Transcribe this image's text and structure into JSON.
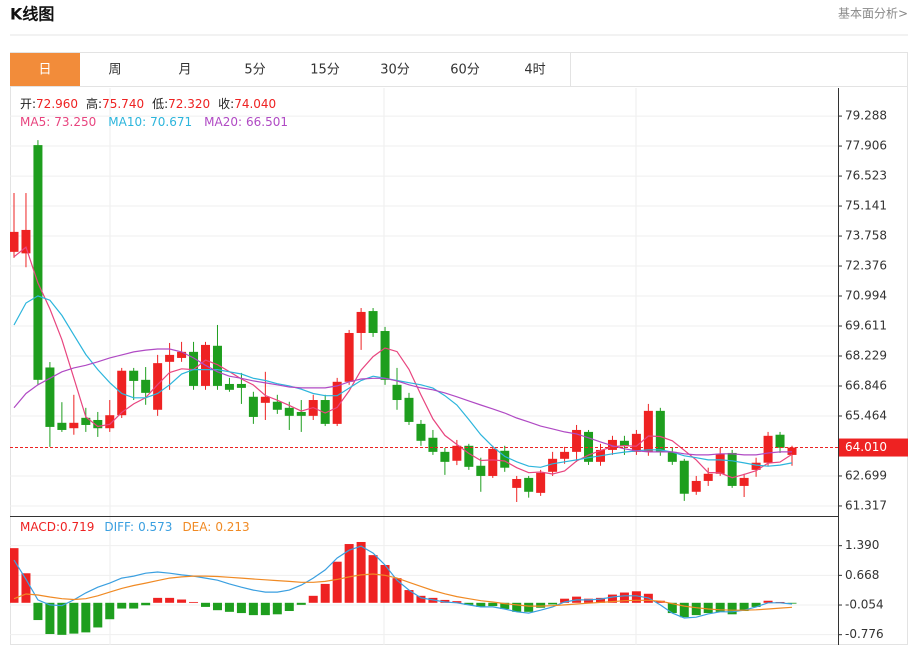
{
  "header": {
    "title": "K线图",
    "link": "基本面分析>"
  },
  "tabs": [
    "日",
    "周",
    "月",
    "5分",
    "15分",
    "30分",
    "60分",
    "4时"
  ],
  "chart_data": [
    {
      "type": "candlestick",
      "up_color": "#ee2222",
      "down_color": "#1e9e1e",
      "open": [
        73.03,
        72.96,
        77.95,
        67.7,
        65.15,
        64.9,
        65.38,
        65.28,
        64.9,
        65.5,
        67.55,
        67.13,
        65.75,
        67.96,
        68.14,
        68.42,
        66.85,
        68.7,
        66.94,
        66.94,
        66.35,
        66.07,
        66.12,
        65.84,
        65.65,
        65.47,
        66.2,
        65.1,
        67.04,
        69.29,
        70.3,
        69.38,
        66.9,
        66.3,
        65.1,
        64.46,
        63.81,
        63.4,
        64.09,
        63.17,
        62.7,
        63.86,
        62.15,
        62.61,
        61.92,
        62.89,
        63.49,
        63.81,
        64.73,
        63.35,
        63.9,
        64.32,
        63.81,
        63.81,
        65.7,
        63.81,
        63.4,
        61.97,
        62.47,
        62.8,
        63.76,
        62.24,
        62.98,
        63.31,
        64.6,
        63.67
      ],
      "high": [
        75.74,
        75.74,
        78.18,
        67.95,
        66.1,
        66.44,
        65.84,
        65.65,
        66.2,
        67.68,
        67.68,
        67.72,
        68.28,
        68.83,
        68.88,
        68.88,
        68.88,
        69.66,
        67.22,
        67.45,
        66.58,
        67.5,
        66.44,
        66.12,
        66.2,
        66.44,
        66.44,
        67.22,
        69.43,
        70.44,
        70.44,
        69.57,
        67.68,
        66.53,
        65.28,
        64.82,
        63.99,
        64.36,
        64.18,
        63.54,
        64.09,
        64.09,
        62.7,
        62.7,
        62.98,
        63.81,
        64.04,
        65.05,
        64.82,
        64.18,
        64.55,
        64.55,
        64.82,
        66.02,
        65.84,
        63.99,
        63.49,
        62.7,
        63.08,
        63.99,
        63.9,
        62.8,
        63.54,
        64.73,
        64.73,
        64.09
      ],
      "low": [
        72.75,
        72.32,
        66.9,
        64.04,
        64.73,
        64.6,
        64.73,
        64.5,
        64.73,
        65.37,
        66.2,
        65.98,
        65.47,
        66.67,
        67.96,
        66.67,
        66.67,
        66.67,
        66.58,
        66.02,
        65.1,
        65.28,
        65.56,
        64.82,
        64.73,
        65.28,
        65.0,
        65.0,
        66.9,
        68.51,
        69.11,
        66.9,
        65.75,
        65.05,
        64.09,
        63.67,
        62.75,
        63.2,
        62.98,
        61.97,
        62.61,
        62.89,
        61.5,
        61.7,
        61.78,
        62.7,
        63.26,
        63.35,
        63.21,
        63.17,
        63.67,
        63.67,
        63.67,
        63.63,
        63.63,
        63.21,
        61.55,
        61.83,
        62.24,
        62.7,
        62.15,
        61.73,
        62.66,
        63.17,
        63.76,
        63.17
      ],
      "close": [
        73.95,
        74.04,
        67.13,
        64.96,
        64.82,
        65.15,
        65.05,
        64.9,
        65.5,
        67.55,
        67.08,
        66.53,
        67.9,
        68.28,
        68.42,
        66.85,
        68.74,
        66.85,
        66.67,
        66.76,
        65.42,
        66.35,
        65.75,
        65.47,
        65.47,
        66.2,
        65.1,
        67.04,
        69.29,
        70.26,
        69.29,
        67.13,
        66.2,
        65.19,
        64.32,
        63.81,
        63.35,
        64.09,
        63.12,
        62.7,
        63.95,
        63.08,
        62.56,
        61.97,
        62.84,
        63.49,
        63.81,
        64.82,
        63.35,
        63.9,
        64.36,
        64.09,
        64.64,
        65.7,
        63.81,
        63.35,
        61.88,
        62.47,
        62.8,
        63.72,
        62.24,
        62.61,
        63.31,
        64.55,
        64.0,
        64.01
      ],
      "series": [
        {
          "color": "#e8457f",
          "values": [
            72.8,
            73.25,
            71.6,
            70.4,
            68.98,
            67.22,
            65.42,
            64.98,
            65.08,
            65.63,
            66.02,
            66.31,
            66.91,
            67.47,
            67.64,
            67.6,
            68.04,
            67.83,
            67.51,
            67.17,
            66.89,
            66.41,
            66.19,
            65.95,
            65.69,
            65.85,
            65.6,
            65.86,
            66.62,
            67.58,
            68.2,
            68.6,
            68.43,
            67.61,
            66.43,
            65.33,
            64.57,
            64.15,
            63.74,
            63.41,
            63.44,
            63.39,
            63.08,
            62.85,
            62.88,
            62.79,
            62.93,
            63.39,
            63.66,
            63.87,
            64.05,
            64.1,
            64.07,
            64.54,
            64.52,
            64.32,
            63.88,
            63.44,
            62.86,
            62.84,
            62.62,
            62.77,
            62.94,
            63.29,
            63.34,
            63.7
          ]
        },
        {
          "color": "#2cb5dc",
          "values": [
            69.66,
            70.67,
            71.0,
            70.8,
            70.1,
            69.2,
            68.3,
            67.6,
            67.0,
            66.5,
            66.3,
            66.3,
            66.5,
            66.9,
            67.4,
            67.6,
            67.6,
            67.6,
            67.5,
            67.4,
            67.2,
            67.1,
            66.95,
            66.85,
            66.7,
            66.5,
            66.4,
            66.4,
            66.75,
            67.1,
            67.3,
            67.2,
            67.1,
            67.0,
            66.9,
            66.75,
            66.4,
            65.97,
            65.3,
            64.6,
            64.05,
            63.6,
            63.35,
            63.15,
            63.1,
            63.26,
            63.35,
            63.44,
            63.54,
            63.63,
            63.72,
            63.8,
            63.86,
            63.9,
            63.9,
            63.8,
            63.63,
            63.54,
            63.44,
            63.44,
            63.4,
            63.3,
            63.2,
            63.15,
            63.2,
            63.3
          ]
        },
        {
          "color": "#b04ac4",
          "values": [
            65.84,
            66.5,
            66.9,
            67.2,
            67.5,
            67.68,
            67.8,
            67.96,
            68.14,
            68.28,
            68.42,
            68.5,
            68.55,
            68.55,
            68.42,
            68.14,
            67.8,
            67.5,
            67.3,
            67.2,
            67.08,
            66.99,
            66.9,
            66.8,
            66.76,
            66.76,
            66.76,
            66.85,
            67.04,
            67.17,
            67.2,
            67.2,
            67.08,
            66.9,
            66.76,
            66.67,
            66.53,
            66.35,
            66.16,
            65.97,
            65.79,
            65.6,
            65.37,
            65.19,
            65.0,
            64.87,
            64.73,
            64.64,
            64.46,
            64.27,
            64.09,
            63.95,
            63.86,
            63.81,
            63.81,
            63.81,
            63.72,
            63.67,
            63.67,
            63.72,
            63.72,
            63.67,
            63.67,
            63.76,
            63.81,
            63.81
          ]
        }
      ],
      "ohlc_legend": {
        "label_color": "#222",
        "value_color": "#ee2222",
        "items": [
          {
            "label": "开:",
            "value": "72.960"
          },
          {
            "label": "高:",
            "value": "75.740"
          },
          {
            "label": "低:",
            "value": "72.320"
          },
          {
            "label": "收:",
            "value": "74.040"
          }
        ]
      },
      "legend": [
        {
          "label": "MA5:",
          "value": "73.250",
          "color": "#e8457f"
        },
        {
          "label": "MA10:",
          "value": "70.671",
          "color": "#2cb5dc"
        },
        {
          "label": "MA20:",
          "value": "66.501",
          "color": "#b04ac4"
        }
      ],
      "ylim": [
        60.9,
        80.49
      ],
      "yticks": [
        79.288,
        77.906,
        76.523,
        75.141,
        73.758,
        72.376,
        70.994,
        69.611,
        68.229,
        66.846,
        65.464,
        62.699,
        61.317
      ],
      "grid": true,
      "last_price": {
        "value": 64.01,
        "label": "64.010",
        "color": "#ee2222"
      }
    },
    {
      "type": "macd",
      "up_color": "#ee2222",
      "down_color": "#1e9e1e",
      "values": [
        1.33,
        0.719,
        -0.42,
        -0.76,
        -0.78,
        -0.75,
        -0.72,
        -0.6,
        -0.4,
        -0.14,
        -0.14,
        -0.06,
        0.12,
        0.12,
        0.08,
        0.02,
        -0.1,
        -0.18,
        -0.22,
        -0.25,
        -0.3,
        -0.3,
        -0.28,
        -0.2,
        -0.05,
        0.17,
        0.46,
        1.0,
        1.43,
        1.48,
        1.16,
        0.92,
        0.6,
        0.31,
        0.17,
        0.12,
        0.07,
        0.04,
        -0.05,
        -0.1,
        -0.08,
        -0.15,
        -0.22,
        -0.22,
        -0.12,
        -0.04,
        0.1,
        0.15,
        0.1,
        0.12,
        0.2,
        0.25,
        0.28,
        0.22,
        0.05,
        -0.25,
        -0.35,
        -0.3,
        -0.25,
        -0.22,
        -0.28,
        -0.2,
        -0.1,
        0.05,
        0.02,
        -0.02
      ],
      "series": [
        {
          "color": "#3a9fe0",
          "values": [
            1.04,
            0.573,
            0.07,
            -0.05,
            -0.07,
            0.07,
            0.24,
            0.38,
            0.48,
            0.6,
            0.65,
            0.72,
            0.75,
            0.72,
            0.68,
            0.65,
            0.6,
            0.55,
            0.46,
            0.38,
            0.31,
            0.26,
            0.26,
            0.31,
            0.43,
            0.6,
            0.8,
            1.09,
            1.28,
            1.38,
            1.21,
            0.92,
            0.55,
            0.31,
            0.12,
            0.07,
            0.02,
            0.0,
            -0.05,
            -0.1,
            -0.1,
            -0.15,
            -0.22,
            -0.25,
            -0.18,
            -0.1,
            0.02,
            0.07,
            0.07,
            0.09,
            0.14,
            0.17,
            0.17,
            0.12,
            -0.05,
            -0.25,
            -0.37,
            -0.35,
            -0.27,
            -0.22,
            -0.22,
            -0.18,
            -0.1,
            0.0,
            0.0,
            -0.03
          ]
        },
        {
          "color": "#f08a24",
          "values": [
            0.1,
            0.213,
            0.19,
            0.14,
            0.1,
            0.08,
            0.1,
            0.17,
            0.26,
            0.35,
            0.42,
            0.48,
            0.54,
            0.6,
            0.63,
            0.65,
            0.65,
            0.64,
            0.62,
            0.6,
            0.58,
            0.56,
            0.54,
            0.52,
            0.5,
            0.5,
            0.52,
            0.57,
            0.63,
            0.68,
            0.7,
            0.67,
            0.6,
            0.5,
            0.4,
            0.3,
            0.22,
            0.15,
            0.1,
            0.05,
            0.02,
            -0.02,
            -0.05,
            -0.08,
            -0.08,
            -0.07,
            -0.05,
            -0.03,
            -0.01,
            0.01,
            0.03,
            0.05,
            0.06,
            0.06,
            0.04,
            -0.02,
            -0.08,
            -0.12,
            -0.15,
            -0.17,
            -0.18,
            -0.18,
            -0.17,
            -0.15,
            -0.13,
            -0.11
          ]
        }
      ],
      "legend": [
        {
          "label": "MACD:",
          "value": "0.719",
          "color": "#ee2222"
        },
        {
          "label": "DIFF:",
          "value": "0.573",
          "color": "#3a9fe0"
        },
        {
          "label": "DEA:",
          "value": "0.213",
          "color": "#f08a24"
        }
      ],
      "ylim": [
        -1.027,
        2.088
      ],
      "yticks": [
        {
          "value": 1.39,
          "label": "1.390"
        },
        {
          "value": 0.668,
          "label": "0.668"
        },
        {
          "value": -0.054,
          "label": "-0.054"
        },
        {
          "value": -0.776,
          "label": "-0.776"
        }
      ],
      "grid": true
    }
  ]
}
